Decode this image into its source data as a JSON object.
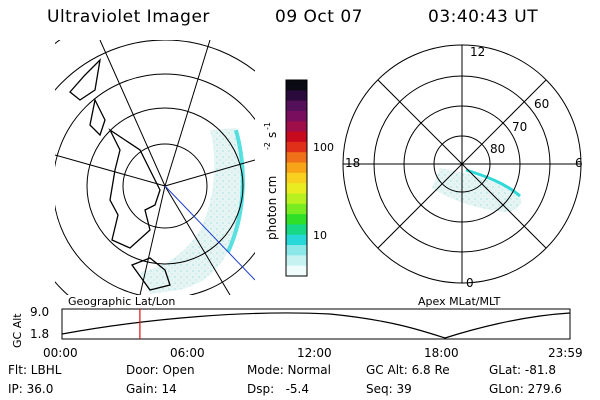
{
  "header": {
    "instrument": "Ultraviolet Imager",
    "date": "09 Oct 07",
    "time": "03:40:43 UT"
  },
  "geo_panel": {
    "label": "Geographic Lat/Lon"
  },
  "apex_panel": {
    "label": "Apex MLat/MLT",
    "mlt_labels": [
      "12",
      "18",
      "6",
      "0"
    ],
    "lat_labels": [
      "60",
      "70",
      "80"
    ]
  },
  "colorbar": {
    "unit_label": "photon cm",
    "ticks": [
      "100",
      "10"
    ],
    "colors": [
      "#0a0a14",
      "#2a0a3a",
      "#55105a",
      "#7a0e5e",
      "#a00e4a",
      "#c80a1e",
      "#e0301a",
      "#f0701a",
      "#f8a418",
      "#f8d020",
      "#e8ec20",
      "#b8f020",
      "#78ec20",
      "#30e028",
      "#18d888",
      "#28d8d8",
      "#8ce8e8",
      "#c6f2f2",
      "#f0fcfc"
    ]
  },
  "altitude_plot": {
    "ylabel": "GC Alt",
    "ymax": "9.0",
    "ymin": "1.8",
    "xticks": [
      "00:00",
      "06:00",
      "12:00",
      "18:00",
      "23:59"
    ],
    "marker_hour": 3.68
  },
  "info": {
    "flt": "Flt: LBHL",
    "ip": "IP: 36.0",
    "door": "Door: Open",
    "gain": "Gain: 14",
    "mode": "Mode: Normal",
    "dsp": "Dsp:   -5.4",
    "gcalt": "GC Alt: 6.8 Re",
    "seq": "Seq: 39",
    "glat": "GLat: -81.8",
    "glon": "GLon: 279.6"
  }
}
